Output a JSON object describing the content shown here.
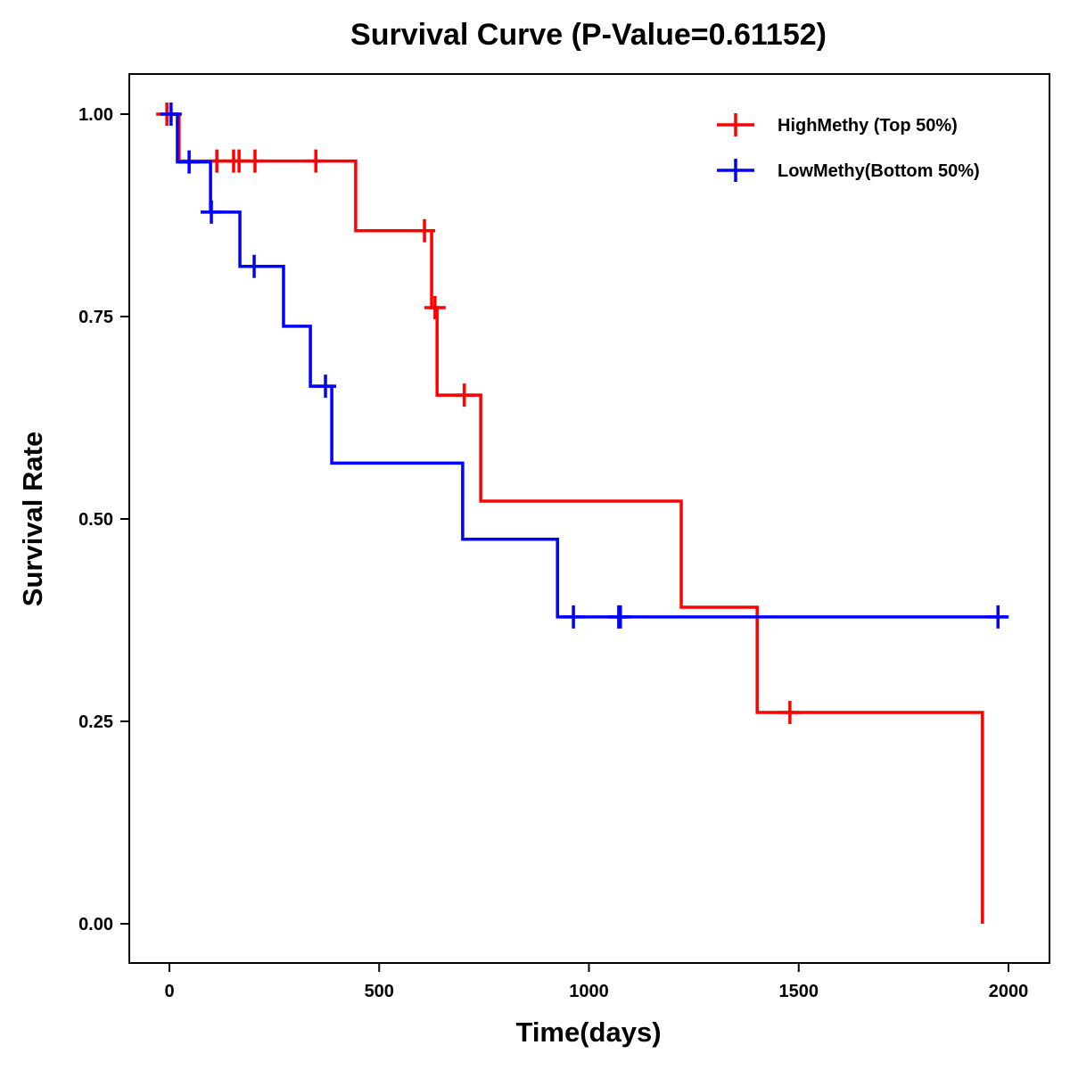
{
  "chart_data": {
    "type": "line",
    "subtype": "kaplan-meier step",
    "title": "Survival Curve (P-Value=0.61152)",
    "xlabel": "Time(days)",
    "ylabel": "Survival Rate",
    "xlim": [
      -95,
      2085
    ],
    "ylim": [
      -0.05,
      1.05
    ],
    "xticks": [
      0,
      500,
      1000,
      1500,
      2000
    ],
    "xtick_labels": [
      "0",
      "500",
      "1000",
      "1500",
      "2000"
    ],
    "yticks": [
      0,
      0.25,
      0.5,
      0.75,
      1
    ],
    "ytick_labels": [
      "0.00",
      "0.25",
      "0.50",
      "0.75",
      "1.00"
    ],
    "grid": false,
    "legend_position": "top-right",
    "series": [
      {
        "name": "HighMethy (Top 50%)",
        "color": "#ff0000",
        "steps": [
          [
            0,
            1.0
          ],
          [
            23,
            0.942
          ],
          [
            444,
            0.856
          ],
          [
            625,
            0.761
          ],
          [
            638,
            0.653
          ],
          [
            742,
            0.522
          ],
          [
            1220,
            0.391
          ],
          [
            1401,
            0.261
          ],
          [
            1938,
            0.0
          ]
        ],
        "end": 1938,
        "censors": [
          [
            -6,
            1.0
          ],
          [
            113,
            0.942
          ],
          [
            153,
            0.942
          ],
          [
            166,
            0.942
          ],
          [
            204,
            0.942
          ],
          [
            349,
            0.942
          ],
          [
            608,
            0.856
          ],
          [
            633,
            0.761
          ],
          [
            703,
            0.653
          ],
          [
            1479,
            0.261
          ]
        ]
      },
      {
        "name": "LowMethy(Bottom 50%)",
        "color": "#0000ff",
        "steps": [
          [
            0,
            1.0
          ],
          [
            19,
            0.941
          ],
          [
            98,
            0.879
          ],
          [
            168,
            0.812
          ],
          [
            272,
            0.738
          ],
          [
            336,
            0.664
          ],
          [
            387,
            0.569
          ],
          [
            699,
            0.475
          ],
          [
            925,
            0.379
          ]
        ],
        "end": 1998,
        "censors": [
          [
            4,
            1.0
          ],
          [
            47,
            0.941
          ],
          [
            100,
            0.879
          ],
          [
            202,
            0.812
          ],
          [
            372,
            0.664
          ],
          [
            963,
            0.379
          ],
          [
            1071,
            0.379
          ],
          [
            1075,
            0.379
          ],
          [
            1975,
            0.379
          ]
        ]
      }
    ]
  }
}
